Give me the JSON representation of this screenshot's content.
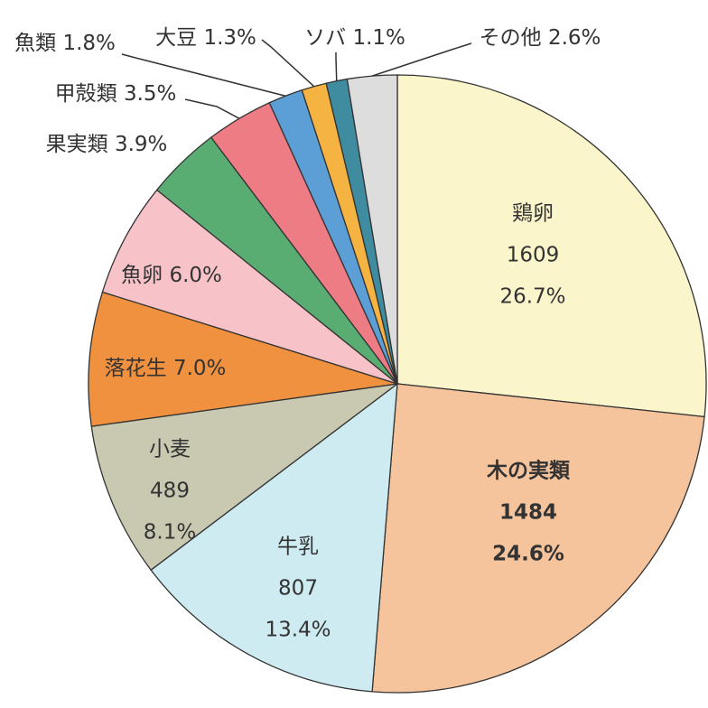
{
  "chart_data": {
    "type": "pie",
    "categories": [
      "鶏卵",
      "木の実類",
      "牛乳",
      "小麦",
      "落花生",
      "魚卵",
      "果実類",
      "甲殻類",
      "魚類",
      "大豆",
      "ソバ",
      "その他"
    ],
    "values": [
      26.7,
      24.6,
      13.4,
      8.1,
      7.0,
      6.0,
      3.9,
      3.5,
      1.8,
      1.3,
      1.1,
      2.6
    ],
    "value_labels": [
      "26.7%",
      "24.6%",
      "13.4%",
      "8.1%",
      "7.0%",
      "6.0%",
      "3.9%",
      "3.5%",
      "1.8%",
      "1.3%",
      "1.1%",
      "2.6%"
    ],
    "counts": [
      1609,
      1484,
      807,
      489,
      null,
      null,
      null,
      null,
      null,
      null,
      null,
      null
    ],
    "colors": [
      "#fbf5cc",
      "#f6c49c",
      "#cdebf0",
      "#c9c8b0",
      "#f0913f",
      "#f7c3c9",
      "#5aad72",
      "#ee7c85",
      "#5b9fd6",
      "#f5b342",
      "#3f8ba0",
      "#dddddd"
    ],
    "highlight": {
      "index": 1,
      "color": "#ff0000"
    }
  }
}
